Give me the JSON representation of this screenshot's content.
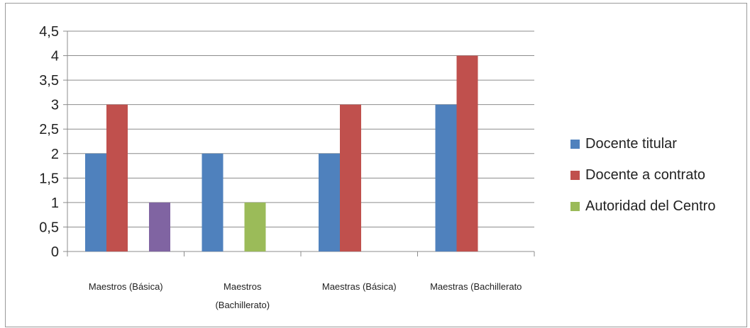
{
  "chart_data": {
    "type": "bar",
    "categories": [
      [
        "Maestros (Básica)"
      ],
      [
        "Maestros",
        "(Bachillerato)"
      ],
      [
        "Maestras  (Básica)"
      ],
      [
        "Maestras (Bachillerato"
      ]
    ],
    "series": [
      {
        "name": "Docente titular",
        "color": "#4F81BD",
        "values": [
          2,
          2,
          2,
          3
        ]
      },
      {
        "name": "Docente a contrato",
        "color": "#C0504D",
        "values": [
          3,
          null,
          3,
          4
        ]
      },
      {
        "name": "",
        "color": "#8064A2",
        "values": [
          1,
          null,
          null,
          null
        ]
      },
      {
        "name": "Autoridad del Centro",
        "color": "#9BBB59",
        "values": [
          null,
          1,
          null,
          null
        ]
      }
    ],
    "bar_slots": [
      [
        0,
        1,
        null,
        2
      ],
      [
        0,
        null,
        3,
        null
      ],
      [
        0,
        1,
        null,
        null
      ],
      [
        0,
        1,
        null,
        null
      ]
    ],
    "legend_series": [
      0,
      1,
      3
    ],
    "ylim": [
      0,
      4.5
    ],
    "yticks": [
      "0",
      "0,5",
      "1",
      "1,5",
      "2",
      "2,5",
      "3",
      "3,5",
      "4",
      "4,5"
    ],
    "grid": true,
    "legend_position": "right",
    "title": "",
    "xlabel": "",
    "ylabel": ""
  }
}
